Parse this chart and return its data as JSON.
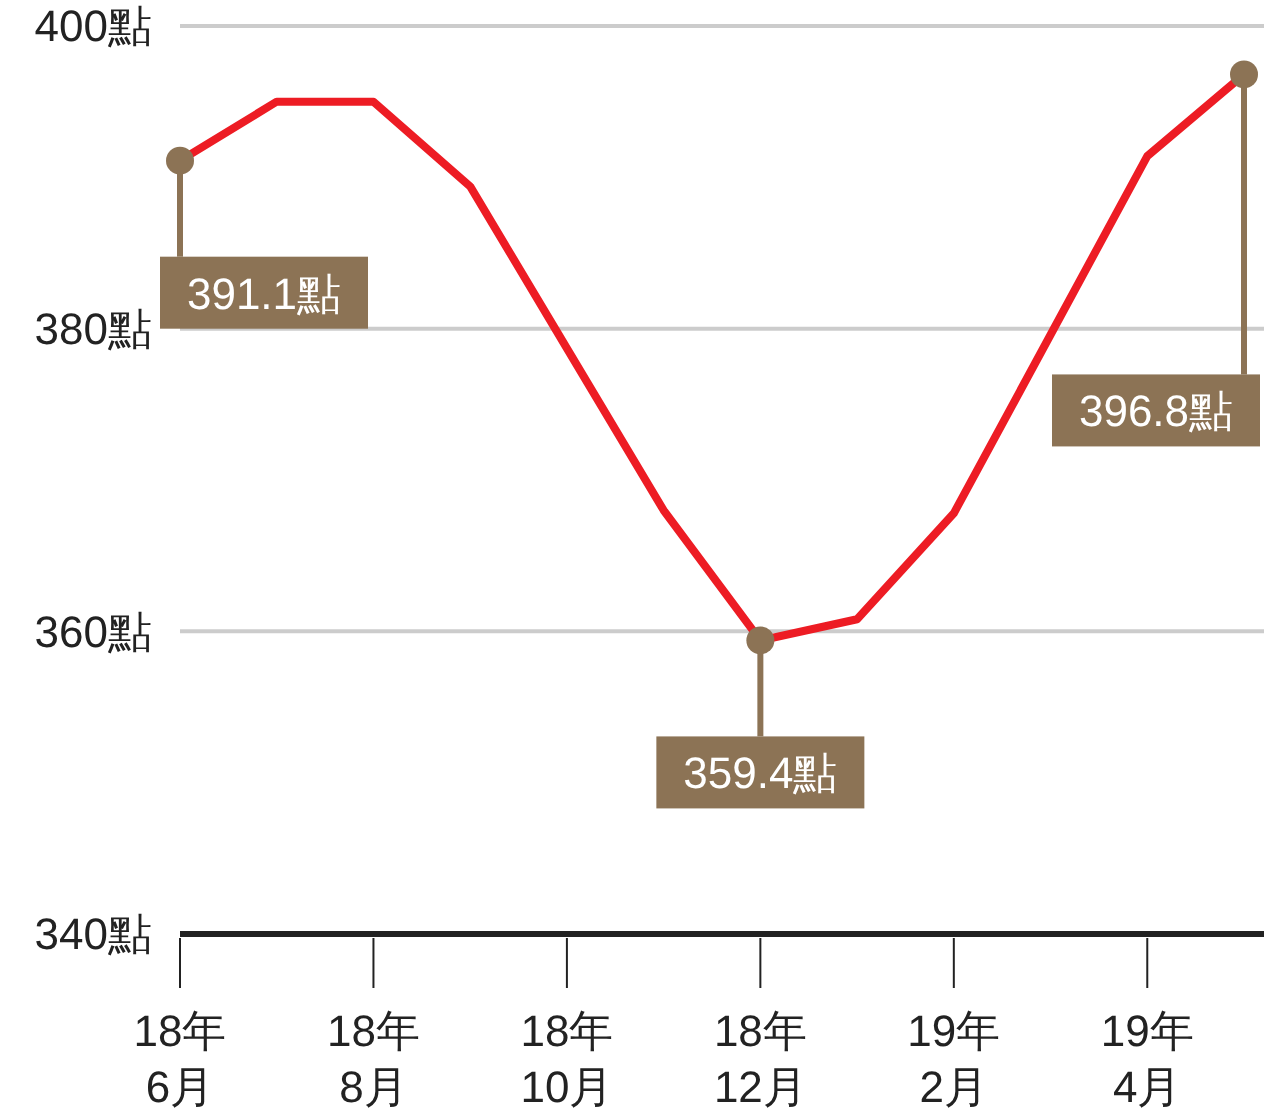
{
  "chart_data": {
    "type": "line",
    "categories": [
      "18年\n6月",
      null,
      "18年\n8月",
      null,
      "18年\n10月",
      null,
      "18年\n12月",
      null,
      "19年\n2月",
      null,
      "19年\n4月",
      null
    ],
    "series": [
      {
        "color": "#ed1c24",
        "values": [
          391.1,
          395.0,
          395.0,
          389.4,
          378.7,
          368.0,
          359.4,
          360.8,
          367.8,
          379.6,
          391.4,
          396.8
        ],
        "value_labels": [
          "391.1點",
          null,
          null,
          null,
          null,
          null,
          "359.4點",
          null,
          null,
          null,
          null,
          "396.8點"
        ]
      }
    ],
    "ylim": [
      340,
      400
    ],
    "yticks": [
      {
        "value": 340,
        "label": "340點"
      },
      {
        "value": 360,
        "label": "360點"
      },
      {
        "value": 380,
        "label": "380點"
      },
      {
        "value": 400,
        "label": "400點"
      }
    ],
    "grid": "y",
    "marker": "none",
    "line_style": "solid"
  }
}
